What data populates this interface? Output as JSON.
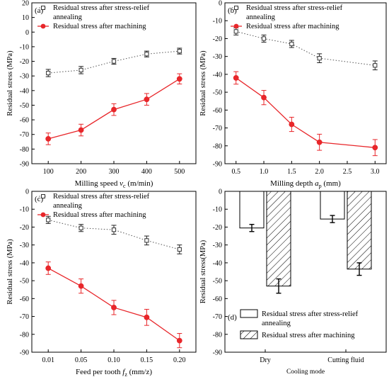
{
  "colors": {
    "annealed": "#555555",
    "machined": "#e8262a",
    "axis": "#000000"
  },
  "chart_data": [
    {
      "id": "a",
      "panel_label": "(a)",
      "type": "line",
      "xlabel_parts": [
        "Milling speed ",
        "v",
        "c",
        " (m/min)"
      ],
      "ylabel": "Residual stress (MPa)",
      "x_scale": "category",
      "categories": [
        "100",
        "200",
        "300",
        "400",
        "500"
      ],
      "x": [
        100,
        200,
        300,
        400,
        500
      ],
      "ylim": [
        -90,
        20
      ],
      "yticks": [
        20,
        10,
        0,
        -10,
        -20,
        -30,
        -40,
        -50,
        -60,
        -70,
        -80,
        -90
      ],
      "ytick_labels": [
        "20",
        "10",
        "0",
        "-10",
        "-20",
        "-30",
        "-40",
        "-50",
        "-60",
        "-70",
        "-80",
        "-90"
      ],
      "legend": {
        "placement": "top",
        "entries": [
          {
            "lines": [
              "Residual stress after stress-relief",
              "annealing"
            ]
          },
          {
            "lines": [
              "Residual stress after machining"
            ]
          }
        ]
      },
      "series": [
        {
          "values": [
            -28,
            -26,
            -20,
            -15,
            -13
          ],
          "errors": [
            2.5,
            2.5,
            2,
            2,
            2
          ]
        },
        {
          "values": [
            -73,
            -67,
            -53,
            -46,
            -32
          ],
          "errors": [
            4,
            4,
            4,
            4,
            3.5
          ]
        }
      ]
    },
    {
      "id": "b",
      "panel_label": "(b)",
      "type": "line",
      "xlabel_parts": [
        "Milling depth ",
        "a",
        "p",
        " (mm)"
      ],
      "ylabel": "Residual stress (MPa)",
      "x_scale": "linear",
      "xlim": [
        0.3,
        3.2
      ],
      "xticks": [
        0.5,
        1.0,
        1.5,
        2.0,
        2.5,
        3.0
      ],
      "xtick_labels": [
        "0.5",
        "1.0",
        "1.5",
        "2.0",
        "2.5",
        "3.0"
      ],
      "x": [
        0.5,
        1.0,
        1.5,
        2.0,
        3.0
      ],
      "ylim": [
        -90,
        0
      ],
      "yticks": [
        0,
        -10,
        -20,
        -30,
        -40,
        -50,
        -60,
        -70,
        -80,
        -90
      ],
      "ytick_labels": [
        "0",
        "-10",
        "-20",
        "-30",
        "-40",
        "-50",
        "-60",
        "-70",
        "-80",
        "-90"
      ],
      "legend": {
        "placement": "top",
        "entries": [
          {
            "lines": [
              "Residual stress after stress-relief",
              "annealing"
            ]
          },
          {
            "lines": [
              "Residual stress after machining"
            ]
          }
        ]
      },
      "series": [
        {
          "values": [
            -16,
            -20,
            -23,
            -31,
            -35
          ],
          "errors": [
            2,
            2,
            2,
            2.5,
            2.5
          ]
        },
        {
          "values": [
            -42,
            -53,
            -68,
            -78,
            -81
          ],
          "errors": [
            3.5,
            4,
            4,
            4.5,
            4.5
          ]
        }
      ]
    },
    {
      "id": "c",
      "panel_label": "(c)",
      "type": "line",
      "xlabel_parts": [
        "Feed per tooth ",
        "f",
        "z",
        " (mm/z)"
      ],
      "ylabel": "Residual stress (MPa)",
      "x_scale": "category",
      "categories": [
        "0.01",
        "0.05",
        "0.10",
        "0.15",
        "0.20"
      ],
      "x": [
        0.01,
        0.05,
        0.1,
        0.15,
        0.2
      ],
      "ylim": [
        -90,
        0
      ],
      "yticks": [
        0,
        -10,
        -20,
        -30,
        -40,
        -50,
        -60,
        -70,
        -80,
        -90
      ],
      "ytick_labels": [
        "0",
        "-10",
        "-20",
        "-30",
        "-40",
        "-50",
        "-60",
        "-70",
        "-80",
        "-90"
      ],
      "legend": {
        "placement": "top",
        "entries": [
          {
            "lines": [
              "Residual stress after stress-relief",
              "annealing"
            ]
          },
          {
            "lines": [
              "Residual stress after machining"
            ]
          }
        ]
      },
      "series": [
        {
          "values": [
            -16,
            -20.5,
            -21.5,
            -27.5,
            -32.5
          ],
          "errors": [
            2,
            2,
            2.5,
            2.5,
            2.5
          ]
        },
        {
          "values": [
            -43,
            -53,
            -65,
            -70.5,
            -83.5
          ],
          "errors": [
            3.5,
            4,
            4,
            4.5,
            4
          ]
        }
      ]
    },
    {
      "id": "d",
      "panel_label": "(d)",
      "type": "bar",
      "xlabel": "Cooling mode",
      "ylabel": "Residual stress(MPa)",
      "categories": [
        "Dry",
        "Cutting fluid"
      ],
      "ylim": [
        -90,
        0
      ],
      "yticks": [
        0,
        -10,
        -20,
        -30,
        -40,
        -50,
        -60,
        -70,
        -80,
        -90
      ],
      "ytick_labels": [
        "0",
        "-10",
        "-20",
        "-30",
        "-40",
        "-50",
        "-60",
        "-70",
        "-80",
        "-90"
      ],
      "legend": {
        "placement": "bottom",
        "entries": [
          {
            "lines": [
              "Residual stress after stress-relief",
              "annealing"
            ]
          },
          {
            "lines": [
              "Residual stress after machining"
            ]
          }
        ]
      },
      "series": [
        {
          "values": [
            -20.5,
            -15.5
          ],
          "errors": [
            2,
            2
          ]
        },
        {
          "values": [
            -53,
            -43.5
          ],
          "errors": [
            4,
            3.5
          ]
        }
      ]
    }
  ]
}
